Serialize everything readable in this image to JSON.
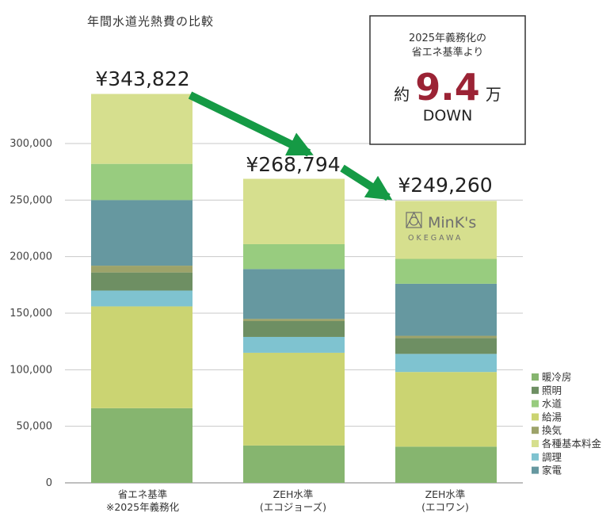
{
  "chart_data": {
    "type": "bar",
    "stacked": true,
    "title": "年間水道光熱費の比較",
    "categories": [
      [
        "省エネ基準",
        "※2025年義務化"
      ],
      [
        "ZEH水準",
        "(エコジョーズ)"
      ],
      [
        "ZEH水準",
        "(エコワン)"
      ]
    ],
    "totals": [
      "¥343,822",
      "¥268,794",
      "¥249,260"
    ],
    "total_values": [
      343822,
      268794,
      249260
    ],
    "ylim": [
      0,
      350000
    ],
    "yticks": [
      0,
      50000,
      100000,
      150000,
      200000,
      250000,
      300000
    ],
    "ytick_labels": [
      "0",
      "50,000",
      "100,000",
      "150,000",
      "200,000",
      "250,000",
      "300,000"
    ],
    "grid": true,
    "legend_position": "bottom-right",
    "series": [
      {
        "name": "暖冷房",
        "color": "#86b56f",
        "values": [
          66000,
          33000,
          32000
        ]
      },
      {
        "name": "給湯",
        "color": "#cbd472",
        "values": [
          90000,
          82000,
          66000
        ]
      },
      {
        "name": "調理",
        "color": "#7fc3d0",
        "values": [
          14000,
          14000,
          16000
        ]
      },
      {
        "name": "照明",
        "color": "#6e8f63",
        "values": [
          16000,
          14000,
          14000
        ]
      },
      {
        "name": "換気",
        "color": "#9da36a",
        "values": [
          6000,
          2000,
          2000
        ]
      },
      {
        "name": "家電",
        "color": "#6698a0",
        "values": [
          58000,
          44000,
          46000
        ]
      },
      {
        "name": "水道",
        "color": "#98cc7f",
        "values": [
          32000,
          22000,
          22000
        ]
      },
      {
        "name": "各種基本料金",
        "color": "#d6df8e",
        "values": [
          61822,
          57794,
          51260
        ]
      }
    ],
    "legend_order": [
      "暖冷房",
      "照明",
      "水道",
      "給湯",
      "換気",
      "各種基本料金",
      "調理",
      "家電"
    ]
  },
  "callout": {
    "line1": "2025年義務化の",
    "line2": "省エネ基準より",
    "prefix": "約",
    "number": "9.4",
    "unit": "万",
    "suffix": "DOWN"
  },
  "logo": {
    "name": "MinK's",
    "sub": "OKEGAWA"
  },
  "colors": {
    "arrow": "#159a45",
    "grid": "#c9c9c9",
    "accent": "#9b2335"
  }
}
